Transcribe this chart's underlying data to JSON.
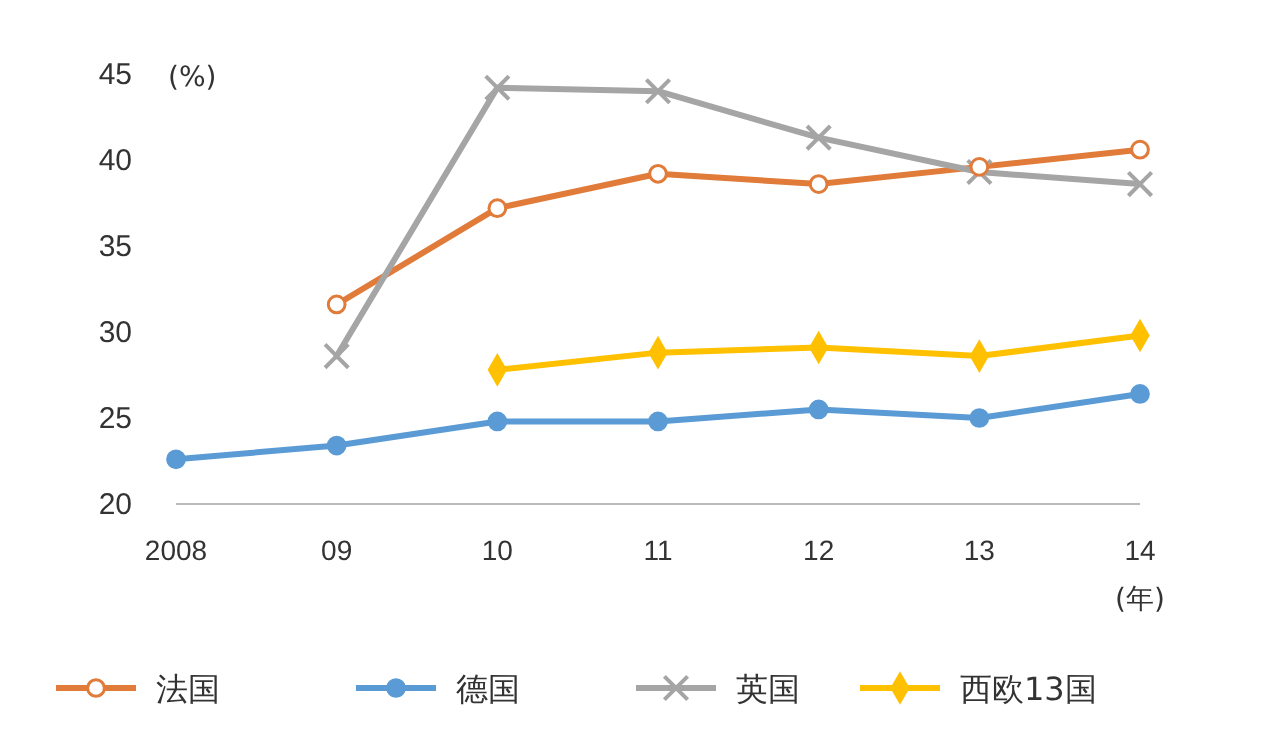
{
  "chart_data": {
    "type": "line",
    "ylabel": "(%)",
    "xlabel": "(年)",
    "categories": [
      "2008",
      "09",
      "10",
      "11",
      "12",
      "13",
      "14"
    ],
    "ylim": [
      20,
      45
    ],
    "yticks": [
      20,
      25,
      30,
      35,
      40,
      45
    ],
    "legend": "bottom",
    "grid": false,
    "series": [
      {
        "name": "法国",
        "color": "#e07b39",
        "marker": "circle",
        "values": [
          null,
          31.6,
          37.2,
          39.2,
          38.6,
          39.6,
          40.6
        ]
      },
      {
        "name": "德国",
        "color": "#5b9bd5",
        "marker": "circle",
        "values": [
          22.6,
          23.4,
          24.8,
          24.8,
          25.5,
          25.0,
          26.4
        ]
      },
      {
        "name": "英国",
        "color": "#a5a5a5",
        "marker": "cross",
        "values": [
          null,
          28.6,
          44.2,
          44.0,
          41.3,
          39.3,
          38.6
        ]
      },
      {
        "name": "西欧13国",
        "color": "#ffc000",
        "marker": "diamond",
        "values": [
          null,
          null,
          27.8,
          28.8,
          29.1,
          28.6,
          29.8
        ]
      }
    ]
  }
}
